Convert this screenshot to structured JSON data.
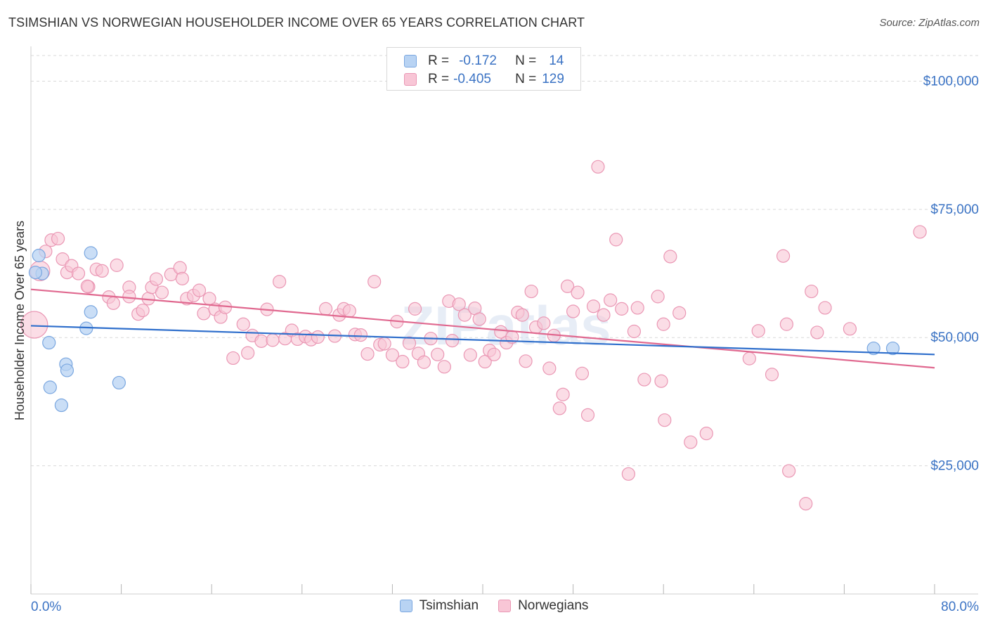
{
  "title": "TSIMSHIAN VS NORWEGIAN HOUSEHOLDER INCOME OVER 65 YEARS CORRELATION CHART",
  "source": "Source: ZipAtlas.com",
  "watermark": "ZIPatlas",
  "legend_top": {
    "rows": [
      {
        "r_label": "R =",
        "r_value": "-0.172",
        "n_label": "N =",
        "n_value": "14"
      },
      {
        "r_label": "R =",
        "r_value": "-0.405",
        "n_label": "N =",
        "n_value": "129"
      }
    ]
  },
  "legend_bottom": {
    "series1": "Tsimshian",
    "series2": "Norwegians"
  },
  "colors": {
    "blue_fill": "#b8d3f3",
    "blue_stroke": "#7aa7e0",
    "blue_line": "#2f6fcc",
    "pink_fill": "#f8c6d6",
    "pink_stroke": "#ea97b4",
    "pink_line": "#e0688f",
    "axis_text": "#3b73c4",
    "grid": "#d9d9d9"
  },
  "chart_data": {
    "type": "scatter",
    "title": "TSIMSHIAN VS NORWEGIAN HOUSEHOLDER INCOME OVER 65 YEARS CORRELATION CHART",
    "xlabel": "",
    "ylabel": "Householder Income Over 65 years",
    "xlim": [
      0,
      80
    ],
    "ylim": [
      0,
      105000
    ],
    "x_tick_labels": [
      "0.0%",
      "80.0%"
    ],
    "y_ticks": [
      25000,
      50000,
      75000,
      100000
    ],
    "y_tick_labels": [
      "$25,000",
      "$50,000",
      "$75,000",
      "$100,000"
    ],
    "grid": "horizontal dashed",
    "legend_position": "top-center",
    "series": [
      {
        "name": "Tsimshian",
        "r": -0.172,
        "n": 14,
        "trend": [
          [
            0,
            52300
          ],
          [
            80,
            46700
          ]
        ],
        "points": [
          [
            0.7,
            66000
          ],
          [
            1.0,
            62500
          ],
          [
            0.4,
            62700
          ],
          [
            5.3,
            66500
          ],
          [
            5.3,
            55000
          ],
          [
            4.9,
            51800
          ],
          [
            1.6,
            49000
          ],
          [
            3.1,
            44800
          ],
          [
            3.2,
            43600
          ],
          [
            1.7,
            40300
          ],
          [
            2.7,
            36800
          ],
          [
            7.8,
            41200
          ],
          [
            74.6,
            47900
          ],
          [
            76.3,
            47900
          ]
        ]
      },
      {
        "name": "Norwegians",
        "r": -0.405,
        "n": 129,
        "trend": [
          [
            0,
            59400
          ],
          [
            80,
            44100
          ]
        ],
        "points": [
          [
            0.3,
            52500
          ],
          [
            0.8,
            63000
          ],
          [
            1.3,
            66800
          ],
          [
            1.8,
            69000
          ],
          [
            2.4,
            69300
          ],
          [
            2.8,
            65300
          ],
          [
            3.2,
            62700
          ],
          [
            3.6,
            64000
          ],
          [
            4.2,
            62500
          ],
          [
            5.1,
            59900
          ],
          [
            5.0,
            60000
          ],
          [
            5.8,
            63300
          ],
          [
            6.3,
            63000
          ],
          [
            6.9,
            57900
          ],
          [
            7.3,
            56700
          ],
          [
            7.6,
            64100
          ],
          [
            8.7,
            59800
          ],
          [
            8.7,
            58000
          ],
          [
            9.5,
            54600
          ],
          [
            9.9,
            55300
          ],
          [
            10.4,
            57600
          ],
          [
            10.7,
            59800
          ],
          [
            11.1,
            61400
          ],
          [
            11.6,
            58800
          ],
          [
            12.4,
            62300
          ],
          [
            13.2,
            63600
          ],
          [
            13.4,
            61500
          ],
          [
            13.8,
            57600
          ],
          [
            14.4,
            58200
          ],
          [
            14.9,
            59200
          ],
          [
            15.3,
            54700
          ],
          [
            15.8,
            57600
          ],
          [
            16.3,
            55500
          ],
          [
            16.8,
            54000
          ],
          [
            17.2,
            55900
          ],
          [
            17.9,
            46000
          ],
          [
            18.8,
            52600
          ],
          [
            19.2,
            47000
          ],
          [
            19.6,
            50400
          ],
          [
            20.4,
            49300
          ],
          [
            20.9,
            55500
          ],
          [
            21.4,
            49500
          ],
          [
            22.0,
            60900
          ],
          [
            22.5,
            49800
          ],
          [
            23.1,
            51400
          ],
          [
            23.6,
            49700
          ],
          [
            24.3,
            50200
          ],
          [
            24.8,
            49600
          ],
          [
            25.4,
            50100
          ],
          [
            26.1,
            55600
          ],
          [
            26.9,
            50300
          ],
          [
            27.3,
            54400
          ],
          [
            27.7,
            55600
          ],
          [
            28.2,
            55200
          ],
          [
            28.7,
            50600
          ],
          [
            29.2,
            50500
          ],
          [
            29.8,
            46800
          ],
          [
            30.4,
            60900
          ],
          [
            30.9,
            48600
          ],
          [
            31.3,
            48800
          ],
          [
            32.0,
            46600
          ],
          [
            32.4,
            53100
          ],
          [
            32.9,
            45300
          ],
          [
            33.5,
            48900
          ],
          [
            34.0,
            55600
          ],
          [
            34.3,
            46900
          ],
          [
            34.8,
            45200
          ],
          [
            35.4,
            49800
          ],
          [
            36.0,
            46700
          ],
          [
            36.6,
            44300
          ],
          [
            37.0,
            57100
          ],
          [
            37.3,
            49400
          ],
          [
            37.9,
            56500
          ],
          [
            38.4,
            54400
          ],
          [
            38.9,
            46600
          ],
          [
            39.3,
            55700
          ],
          [
            39.7,
            53600
          ],
          [
            40.2,
            45300
          ],
          [
            40.6,
            47500
          ],
          [
            41.0,
            46700
          ],
          [
            41.6,
            51100
          ],
          [
            42.1,
            49000
          ],
          [
            42.6,
            50100
          ],
          [
            43.1,
            54900
          ],
          [
            43.5,
            54400
          ],
          [
            43.8,
            45400
          ],
          [
            44.3,
            59000
          ],
          [
            44.7,
            52000
          ],
          [
            45.4,
            52800
          ],
          [
            45.9,
            44000
          ],
          [
            46.3,
            50400
          ],
          [
            46.8,
            36200
          ],
          [
            47.1,
            38900
          ],
          [
            47.5,
            60000
          ],
          [
            48.0,
            55100
          ],
          [
            48.4,
            58800
          ],
          [
            48.8,
            43000
          ],
          [
            49.3,
            34900
          ],
          [
            49.8,
            56100
          ],
          [
            50.2,
            83300
          ],
          [
            50.7,
            54400
          ],
          [
            51.3,
            57300
          ],
          [
            51.8,
            69100
          ],
          [
            52.3,
            55600
          ],
          [
            52.9,
            23400
          ],
          [
            53.4,
            51200
          ],
          [
            53.7,
            55800
          ],
          [
            54.3,
            41800
          ],
          [
            55.5,
            58000
          ],
          [
            55.8,
            41500
          ],
          [
            56.1,
            33900
          ],
          [
            56.0,
            52600
          ],
          [
            56.6,
            65800
          ],
          [
            57.4,
            54800
          ],
          [
            58.4,
            29600
          ],
          [
            59.8,
            31300
          ],
          [
            63.6,
            45900
          ],
          [
            64.4,
            51300
          ],
          [
            65.6,
            42800
          ],
          [
            66.6,
            65900
          ],
          [
            66.9,
            52600
          ],
          [
            67.1,
            24000
          ],
          [
            68.6,
            17600
          ],
          [
            69.1,
            59000
          ],
          [
            69.6,
            51000
          ],
          [
            70.3,
            55800
          ],
          [
            72.5,
            51700
          ],
          [
            78.7,
            70600
          ]
        ]
      }
    ]
  }
}
